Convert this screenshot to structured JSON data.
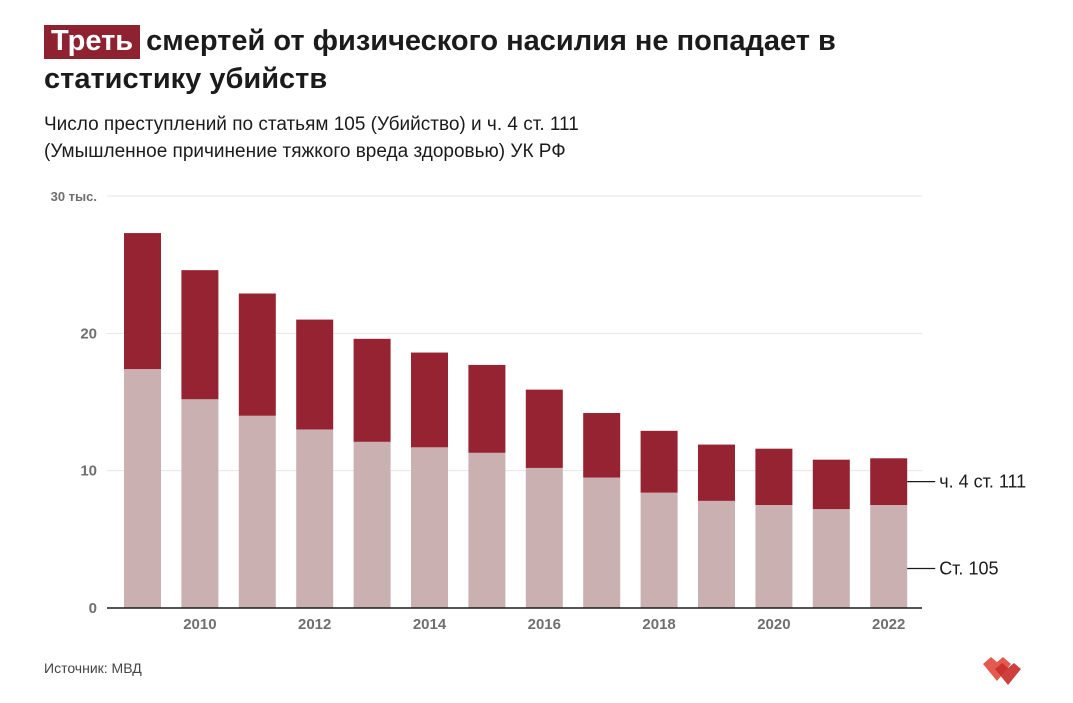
{
  "title": {
    "highlight": "Треть",
    "rest": "смертей от физического насилия не попадает в статистику убийств"
  },
  "subtitle": {
    "line1": "Число преступлений по статьям 105 (Убийство) и ч. 4 ст. 111",
    "line2": "(Умышленное причинение тяжкого вреда здоровью) УК РФ"
  },
  "source": "Источник: МВД",
  "logo": {
    "icon": "double-heart-logo-icon"
  },
  "colors": {
    "accent": "#8f2230",
    "series_top": "#952331",
    "series_bottom": "#cbb0b1",
    "grid": "#e6e6e6",
    "axis": "#1b1b1b",
    "tick_text": "#6f6f6f"
  },
  "chart_data": {
    "type": "bar",
    "stacked": true,
    "x": [
      2009,
      2010,
      2011,
      2012,
      2013,
      2014,
      2015,
      2016,
      2017,
      2018,
      2019,
      2020,
      2021,
      2022
    ],
    "x_tick_labels": [
      {
        "x": 2010,
        "label": "2010"
      },
      {
        "x": 2012,
        "label": "2012"
      },
      {
        "x": 2014,
        "label": "2014"
      },
      {
        "x": 2016,
        "label": "2016"
      },
      {
        "x": 2018,
        "label": "2018"
      },
      {
        "x": 2020,
        "label": "2020"
      },
      {
        "x": 2022,
        "label": "2022"
      }
    ],
    "series": [
      {
        "name": "Ст. 105",
        "values": [
          17.4,
          15.2,
          14.0,
          13.0,
          12.1,
          11.7,
          11.3,
          10.2,
          9.5,
          8.4,
          7.8,
          7.5,
          7.2,
          7.5
        ]
      },
      {
        "name": "ч. 4 ст. 111",
        "values": [
          9.9,
          9.4,
          8.9,
          8.0,
          7.5,
          6.9,
          6.4,
          5.7,
          4.7,
          4.5,
          4.1,
          4.1,
          3.6,
          3.4
        ]
      }
    ],
    "y_ticks": [
      {
        "value": 0,
        "label": "0"
      },
      {
        "value": 10,
        "label": "10"
      },
      {
        "value": 20,
        "label": "20"
      },
      {
        "value": 30,
        "label": "30 тыс."
      }
    ],
    "ylim": [
      0,
      30
    ],
    "xlabel": "",
    "ylabel": "",
    "grid": true,
    "legend_placement": "right, next to last bar"
  }
}
